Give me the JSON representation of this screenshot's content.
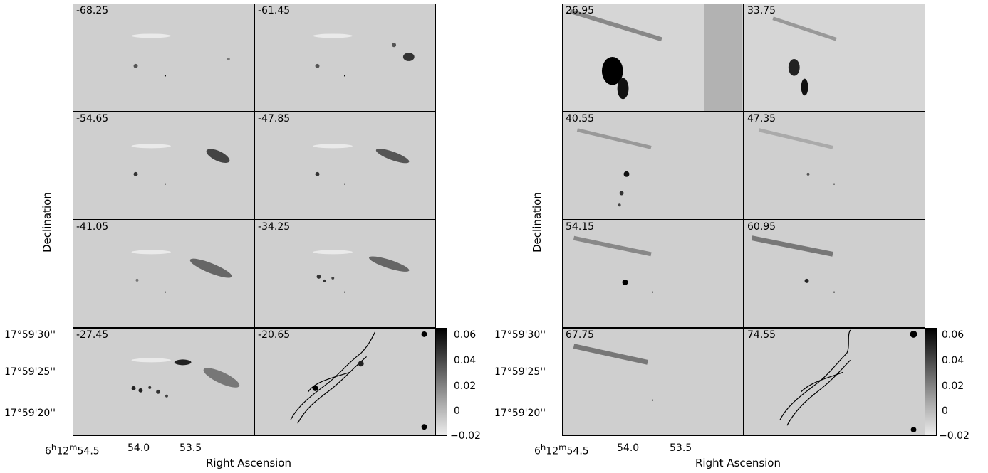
{
  "left_group": {
    "panels": [
      "-68.25",
      "-61.45",
      "-54.65",
      "-47.85",
      "-41.05",
      "-34.25",
      "-27.45",
      "-20.65"
    ],
    "ylabel": "Declination",
    "xlabel": "Right Ascension",
    "dec_ticks": [
      "17°59'30''",
      "17°59'25''",
      "17°59'20''"
    ],
    "ra_ticks": [
      "6h12m54.5",
      "54.0",
      "53.5"
    ],
    "ra_first": {
      "h": "6",
      "m": "12",
      "s": "54.5"
    },
    "ra_second": "54.0",
    "ra_third": "53.5"
  },
  "right_group": {
    "panels": [
      "26.95",
      "33.75",
      "40.55",
      "47.35",
      "54.15",
      "60.95",
      "67.75",
      "74.55"
    ],
    "ylabel": "Declination",
    "xlabel": "Right Ascension",
    "dec_ticks": [
      "17°59'30''",
      "17°59'25''",
      "17°59'20''"
    ],
    "ra_first": {
      "h": "6",
      "m": "12",
      "s": "54.5"
    },
    "ra_second": "54.0",
    "ra_third": "53.5"
  },
  "colorbar": {
    "ticks": [
      "0.06",
      "0.04",
      "0.02",
      "0",
      "−0.02"
    ],
    "range": [
      -0.02,
      0.065
    ]
  },
  "colors": {
    "background_gray": "#cfcfcf",
    "ink": "#000000"
  }
}
